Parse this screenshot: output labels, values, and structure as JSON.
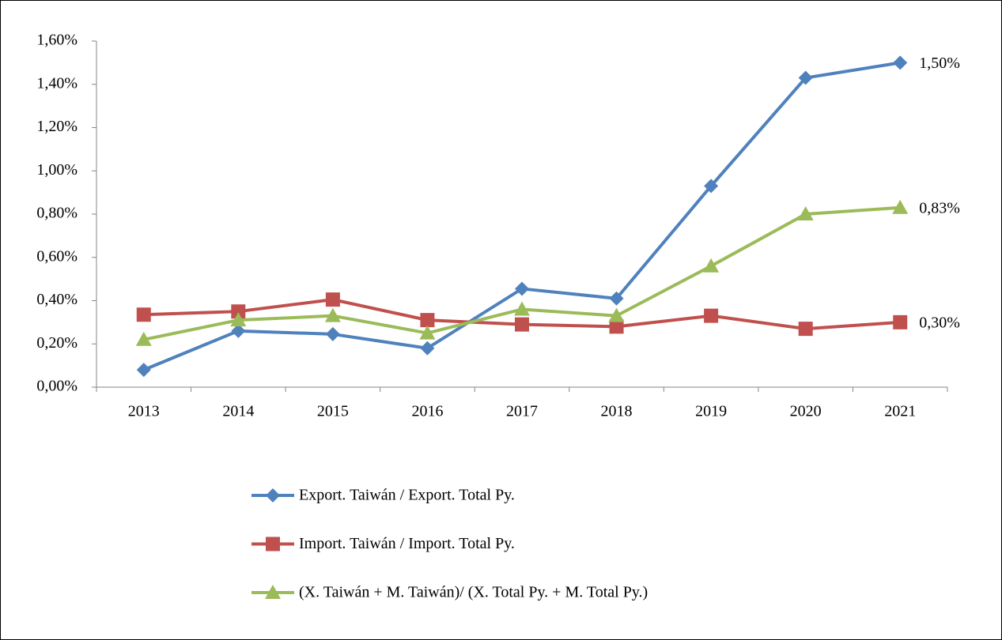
{
  "chart_data": {
    "type": "line",
    "categories": [
      "2013",
      "2014",
      "2015",
      "2016",
      "2017",
      "2018",
      "2019",
      "2020",
      "2021"
    ],
    "ylim": [
      0,
      1.6
    ],
    "yticks": [
      {
        "value": 0,
        "label": "0,00%"
      },
      {
        "value": 0.2,
        "label": "0,20%"
      },
      {
        "value": 0.4,
        "label": "0,40%"
      },
      {
        "value": 0.6,
        "label": "0,60%"
      },
      {
        "value": 0.8,
        "label": "0,80%"
      },
      {
        "value": 1.0,
        "label": "1,00%"
      },
      {
        "value": 1.2,
        "label": "1,20%"
      },
      {
        "value": 1.4,
        "label": "1,40%"
      },
      {
        "value": 1.6,
        "label": "1,60%"
      }
    ],
    "grid": false,
    "legend": "bottom",
    "series": [
      {
        "name": "Export. Taiwán / Export. Total Py.",
        "color": "#4f81bd",
        "marker": "diamond",
        "values": [
          0.08,
          0.26,
          0.245,
          0.18,
          0.455,
          0.41,
          0.93,
          1.43,
          1.5
        ],
        "value_labels": [
          null,
          null,
          null,
          null,
          null,
          null,
          null,
          null,
          "1,50%"
        ]
      },
      {
        "name": "Import. Taiwán / Import. Total Py.",
        "color": "#c0504d",
        "marker": "square",
        "values": [
          0.335,
          0.35,
          0.405,
          0.31,
          0.29,
          0.28,
          0.33,
          0.27,
          0.3
        ],
        "value_labels": [
          null,
          null,
          null,
          null,
          null,
          null,
          null,
          null,
          "0,30%"
        ]
      },
      {
        "name": "(X. Taiwán + M. Taiwán)/ (X. Total Py. + M. Total Py.)",
        "color": "#9bbb59",
        "marker": "triangle",
        "values": [
          0.22,
          0.31,
          0.33,
          0.25,
          0.36,
          0.33,
          0.56,
          0.8,
          0.83
        ],
        "value_labels": [
          null,
          null,
          null,
          null,
          null,
          null,
          null,
          null,
          "0,83%"
        ]
      }
    ]
  }
}
